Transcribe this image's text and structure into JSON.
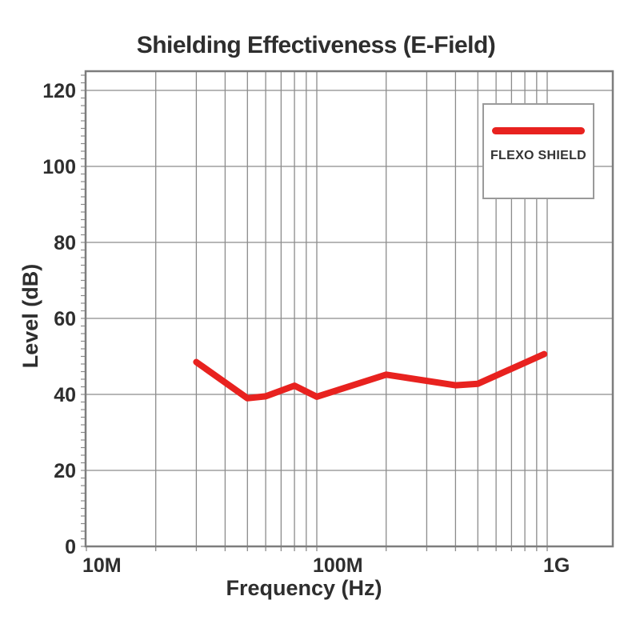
{
  "title": "Shielding Effectiveness (E-Field)",
  "colors": {
    "series_red": "#e8221f",
    "grid": "#8c8c8c",
    "frame": "#7d7d7d",
    "text": "#2e2e2e",
    "legend_border": "#9a9a9a",
    "background": "#ffffff"
  },
  "legend": {
    "entries": [
      {
        "label": "FLEXO SHIELD",
        "color": "#e8221f"
      }
    ],
    "position": "top-right"
  },
  "chart_data": {
    "type": "line",
    "title": "Shielding Effectiveness (E-Field)",
    "xlabel": "Frequency (Hz)",
    "ylabel": "Level (dB)",
    "x_scale": "log",
    "xlim_hz": [
      10000000,
      1930000000
    ],
    "ylim": [
      0,
      125
    ],
    "grid": true,
    "x_ticks": [
      {
        "label": "10M",
        "hz": 10000000
      },
      {
        "label": "100M",
        "hz": 100000000
      },
      {
        "label": "1G",
        "hz": 1000000000
      }
    ],
    "x_minor_gridlines_hz": [
      20000000,
      30000000,
      40000000,
      50000000,
      60000000,
      70000000,
      80000000,
      90000000,
      100000000,
      200000000,
      300000000,
      400000000,
      500000000,
      600000000,
      700000000,
      800000000,
      900000000,
      1000000000
    ],
    "y_ticks": [
      0,
      20,
      40,
      60,
      80,
      100,
      120
    ],
    "y_minor_tick_step_db": 2,
    "legend": {
      "position": "top-right",
      "entries": [
        {
          "label": "FLEXO SHIELD",
          "color": "#e8221f"
        }
      ]
    },
    "series": [
      {
        "name": "FLEXO SHIELD",
        "color": "#e8221f",
        "points_hz_db": [
          [
            30000000,
            48.5
          ],
          [
            50000000,
            39.0
          ],
          [
            60000000,
            39.5
          ],
          [
            80000000,
            42.3
          ],
          [
            100000000,
            39.4
          ],
          [
            200000000,
            45.2
          ],
          [
            400000000,
            42.4
          ],
          [
            500000000,
            42.8
          ],
          [
            970000000,
            50.6
          ]
        ]
      }
    ]
  }
}
